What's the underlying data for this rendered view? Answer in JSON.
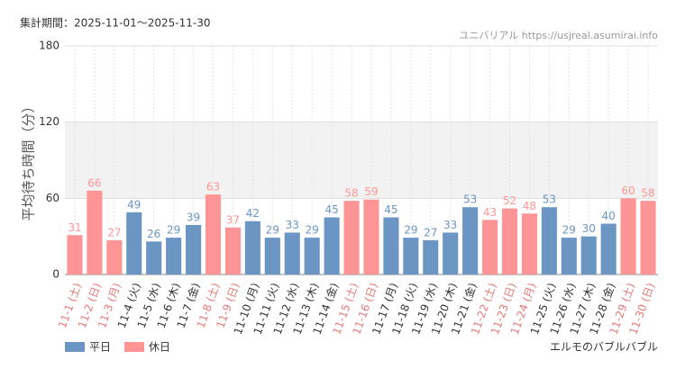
{
  "chart_data": {
    "type": "bar",
    "subtitle": "集計期間：2025-11-01～2025-11-30",
    "title": "エルモのバブルバブル",
    "source": "ユニバリアル  https://usjreal.asumirai.info",
    "y_label": "平均待ち時間（分）",
    "categories": [
      "11-1 (土)",
      "11-2 (日)",
      "11-3 (月)",
      "11-4 (火)",
      "11-5 (水)",
      "11-6 (木)",
      "11-7 (金)",
      "11-8 (土)",
      "11-9 (日)",
      "11-10 (月)",
      "11-11 (火)",
      "11-12 (水)",
      "11-13 (木)",
      "11-14 (金)",
      "11-15 (土)",
      "11-16 (日)",
      "11-17 (月)",
      "11-18 (火)",
      "11-19 (水)",
      "11-20 (木)",
      "11-21 (金)",
      "11-22 (土)",
      "11-23 (日)",
      "11-24 (月)",
      "11-25 (火)",
      "11-26 (水)",
      "11-27 (木)",
      "11-28 (金)",
      "11-29 (土)",
      "11-30 (日)"
    ],
    "series": [
      {
        "name": "平日",
        "color": "#6b96c3",
        "label_color": "#333333",
        "values": [
          null,
          null,
          null,
          49,
          26,
          29,
          39,
          null,
          null,
          42,
          29,
          33,
          29,
          45,
          null,
          null,
          45,
          29,
          27,
          33,
          53,
          null,
          null,
          null,
          53,
          29,
          30,
          40,
          null,
          null
        ]
      },
      {
        "name": "休日",
        "color": "#fd9596",
        "label_color": "#e87878",
        "values": [
          31,
          66,
          27,
          null,
          null,
          null,
          null,
          63,
          37,
          null,
          null,
          null,
          null,
          null,
          58,
          59,
          null,
          null,
          null,
          null,
          null,
          43,
          52,
          48,
          null,
          null,
          null,
          null,
          60,
          58
        ]
      }
    ],
    "ylim": [
      0,
      180
    ],
    "yticks": [
      0,
      60,
      120,
      180
    ],
    "grid": true,
    "shaded_band": [
      60,
      120
    ],
    "legend": "bottom-left"
  }
}
